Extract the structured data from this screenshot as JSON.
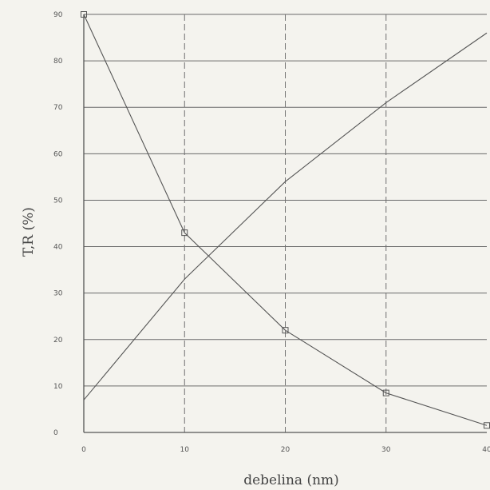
{
  "chart_data": {
    "type": "line",
    "xlabel": "debelina (nm)",
    "ylabel": "T,R (%)",
    "xlim": [
      0,
      40
    ],
    "ylim": [
      0,
      90
    ],
    "x_ticks": [
      "0",
      "10",
      "20",
      "30",
      "40"
    ],
    "y_ticks": [
      "0",
      "10",
      "20",
      "30",
      "40",
      "50",
      "60",
      "70",
      "80",
      "90"
    ],
    "grid": true,
    "series": [
      {
        "x": [
          0,
          10,
          20,
          30,
          40
        ],
        "values": [
          90,
          43,
          22,
          8.5,
          1.5
        ],
        "marker": "square"
      },
      {
        "x": [
          0,
          10,
          20,
          30,
          40
        ],
        "values": [
          7,
          33,
          54,
          71,
          86
        ],
        "marker": "none"
      }
    ],
    "colors": {
      "line": "#555555",
      "grid": "#6a6a6a",
      "background": "#f4f3ee"
    }
  }
}
